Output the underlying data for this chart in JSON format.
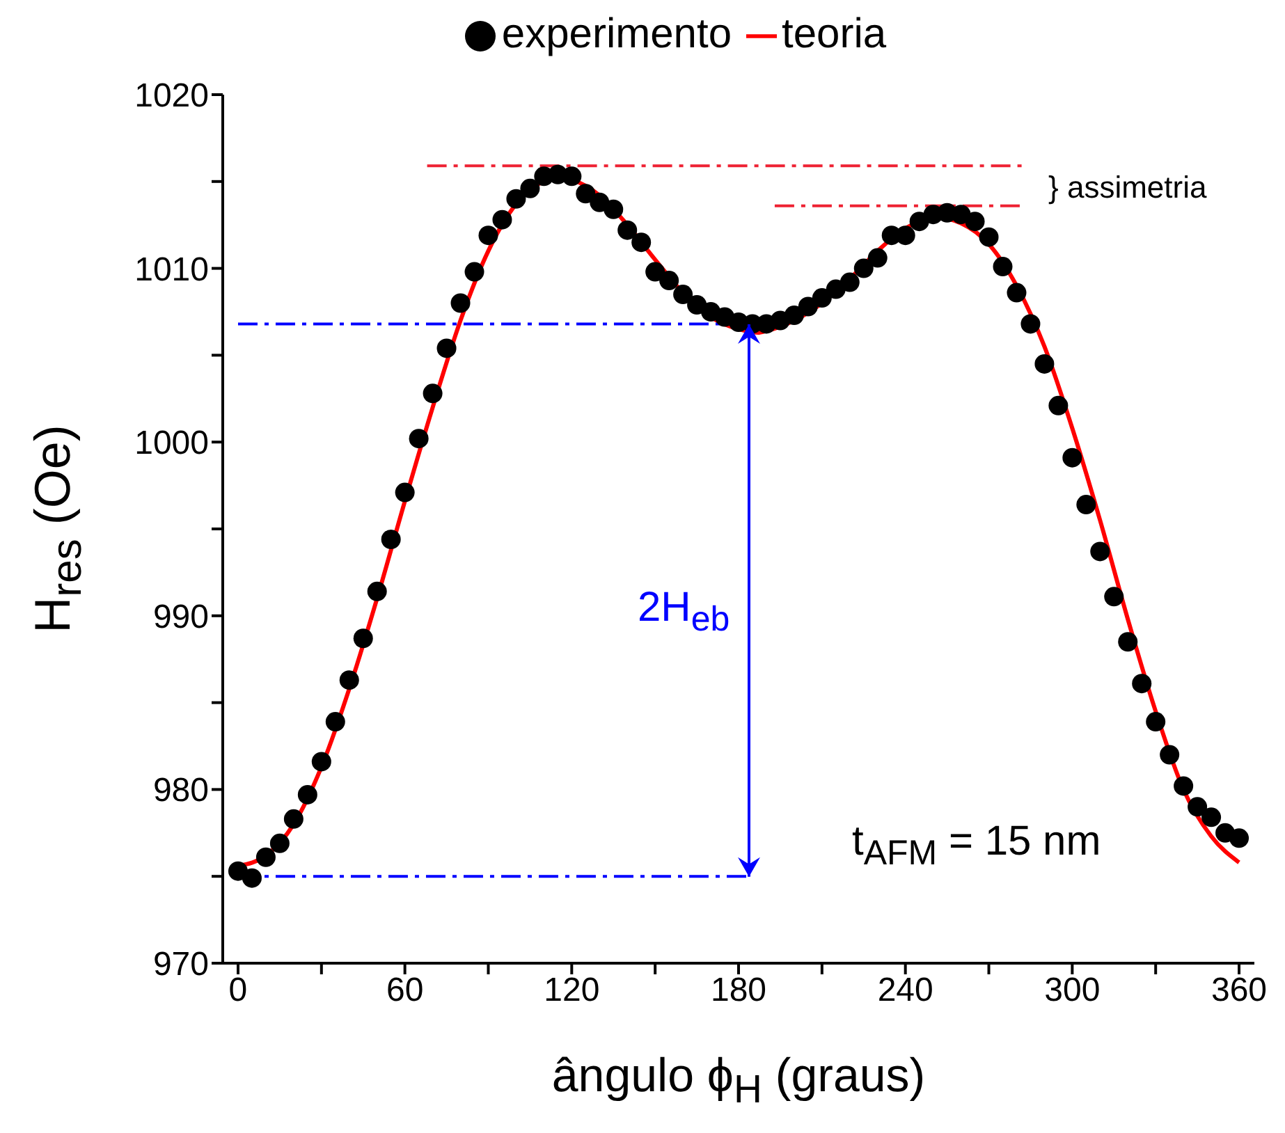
{
  "chart_data": {
    "type": "scatter",
    "xlabel": "ângulo ϕ$_{H}$ (graus)",
    "ylabel": "H$_{res}$ (Oe)",
    "xlim": [
      -5.5,
      365.5
    ],
    "ylim": [
      970,
      1020
    ],
    "xticks": [
      0,
      {
        "value": 30,
        "label": null
      },
      60,
      {
        "value": 90,
        "label": null
      },
      120,
      {
        "value": 150,
        "label": null
      },
      180,
      {
        "value": 210,
        "label": null
      },
      240,
      {
        "value": 270,
        "label": null
      },
      300,
      {
        "value": 330,
        "label": null
      },
      360
    ],
    "yticks": [
      970,
      {
        "value": 975,
        "label": null
      },
      980,
      {
        "value": 985,
        "label": null
      },
      990,
      {
        "value": 995,
        "label": null
      },
      1000,
      {
        "value": 1005,
        "label": null
      },
      1010,
      {
        "value": 1015,
        "label": null
      },
      1020
    ],
    "legend": "top",
    "series": [
      {
        "name": "experimento",
        "marker": "circle",
        "color": "#000000",
        "x": [
          0,
          5,
          10,
          15,
          20,
          25,
          30,
          35,
          40,
          45,
          50,
          55,
          60,
          65,
          70,
          75,
          80,
          85,
          90,
          95,
          100,
          105,
          110,
          115,
          120,
          125,
          130,
          135,
          140,
          145,
          150,
          155,
          160,
          165,
          170,
          175,
          180,
          185,
          190,
          195,
          200,
          205,
          210,
          215,
          220,
          225,
          230,
          235,
          240,
          245,
          250,
          255,
          260,
          265,
          270,
          275,
          280,
          285,
          290,
          295,
          300,
          305,
          310,
          315,
          320,
          325,
          330,
          335,
          340,
          345,
          350,
          355,
          360
        ],
        "values": [
          975.3,
          974.9,
          976.1,
          976.9,
          978.3,
          979.7,
          981.6,
          983.9,
          986.3,
          988.7,
          991.4,
          994.4,
          997.1,
          1000.2,
          1002.8,
          1005.4,
          1008.0,
          1009.8,
          1011.9,
          1012.8,
          1014.0,
          1014.6,
          1015.3,
          1015.4,
          1015.3,
          1014.3,
          1013.8,
          1013.4,
          1012.2,
          1011.5,
          1009.8,
          1009.3,
          1008.5,
          1007.9,
          1007.5,
          1007.2,
          1006.9,
          1006.8,
          1006.8,
          1007.0,
          1007.3,
          1007.8,
          1008.3,
          1008.8,
          1009.2,
          1010.0,
          1010.6,
          1011.9,
          1011.9,
          1012.7,
          1013.1,
          1013.2,
          1013.1,
          1012.7,
          1011.8,
          1010.1,
          1008.6,
          1006.8,
          1004.5,
          1002.1,
          999.1,
          996.4,
          993.7,
          991.1,
          988.5,
          986.1,
          983.9,
          982.0,
          980.2,
          979.0,
          978.4,
          977.5,
          977.2
        ]
      },
      {
        "name": "teoria",
        "type": "line",
        "marker": "none",
        "line_style": "solid",
        "color": "#ff0000",
        "x": [
          0,
          10,
          20,
          30,
          40,
          50,
          60,
          70,
          80,
          90,
          100,
          110,
          117,
          120,
          130,
          140,
          150,
          160,
          170,
          180,
          187,
          190,
          200,
          210,
          220,
          230,
          240,
          252,
          260,
          270,
          280,
          290,
          300,
          310,
          320,
          330,
          340,
          350,
          360
        ],
        "values": [
          975.6,
          976.2,
          978.0,
          981.3,
          985.8,
          991.0,
          996.6,
          1002.0,
          1007.0,
          1011.0,
          1013.7,
          1015.0,
          1015.2,
          1015.1,
          1014.2,
          1012.5,
          1010.5,
          1008.6,
          1007.2,
          1006.5,
          1006.3,
          1006.4,
          1007.0,
          1008.0,
          1009.4,
          1011.0,
          1012.3,
          1012.9,
          1012.6,
          1011.4,
          1009.0,
          1005.5,
          1000.8,
          995.5,
          989.8,
          984.5,
          980.0,
          977.3,
          975.8
        ]
      },
      {
        "type": "line",
        "line_style": "dashed",
        "color": "#0000ff",
        "x": [
          0,
          184
        ],
        "values": [
          1006.8,
          1006.8
        ]
      },
      {
        "type": "line",
        "line_style": "dashed",
        "color": "#0000ff",
        "x": [
          0,
          184
        ],
        "values": [
          975.0,
          975.0
        ]
      },
      {
        "type": "line",
        "line_style": "dashed",
        "color": "#ee2233",
        "x": [
          68,
          283
        ],
        "values": [
          1015.9,
          1015.9
        ]
      },
      {
        "type": "line",
        "line_style": "dashed",
        "color": "#ee2233",
        "x": [
          193,
          283
        ],
        "values": [
          1013.6,
          1013.6
        ]
      }
    ],
    "annotations": [
      "2H$_{eb}$",
      "} assimetria",
      "t$_{AFM}$ = 15 nm"
    ]
  }
}
